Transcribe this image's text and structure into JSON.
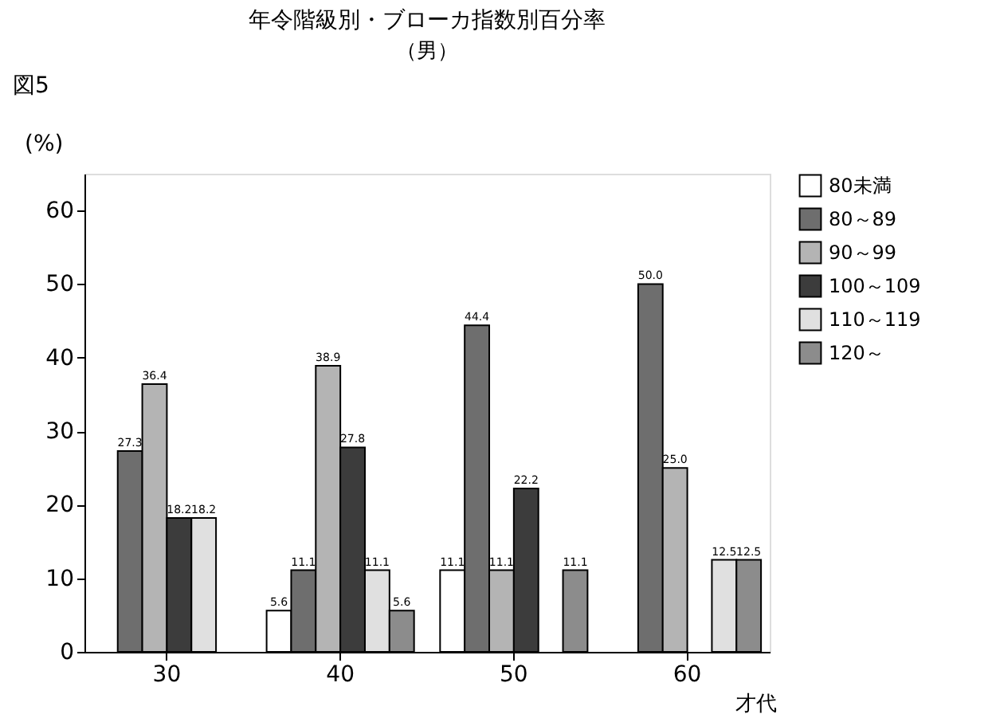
{
  "chart_data": {
    "type": "bar",
    "title": "年令階級別・ブローカ指数別百分率",
    "subtitle": "（男）",
    "annotations": [
      "図5"
    ],
    "ylabel": "(%)",
    "xlabel": "才代",
    "categories": [
      "30",
      "40",
      "50",
      "60"
    ],
    "series": [
      {
        "name": "80未満",
        "color": "#ffffff",
        "values": [
          null,
          5.6,
          11.1,
          null
        ],
        "value_labels": [
          null,
          "5.6",
          "11.1",
          null
        ]
      },
      {
        "name": "80～89",
        "color": "#6e6e6e",
        "values": [
          27.3,
          11.1,
          44.4,
          50.0
        ],
        "value_labels": [
          "27.3",
          "11.1",
          "44.4",
          "50.0"
        ]
      },
      {
        "name": "90～99",
        "color": "#b4b4b4",
        "values": [
          36.4,
          38.9,
          11.1,
          25.0
        ],
        "value_labels": [
          "36.4",
          "38.9",
          "11.1",
          "25.0"
        ]
      },
      {
        "name": "100～109",
        "color": "#3c3c3c",
        "values": [
          18.2,
          27.8,
          22.2,
          null
        ],
        "value_labels": [
          "18.2",
          "27.8",
          "22.2",
          null
        ]
      },
      {
        "name": "110～119",
        "color": "#e0e0e0",
        "values": [
          18.2,
          11.1,
          null,
          12.5
        ],
        "value_labels": [
          "18.2",
          "11.1",
          null,
          "12.5"
        ]
      },
      {
        "name": "120～",
        "color": "#8c8c8c",
        "values": [
          null,
          5.6,
          11.1,
          12.5
        ],
        "value_labels": [
          null,
          "5.6",
          "11.1",
          "12.5"
        ]
      }
    ],
    "ylim": [
      0,
      65
    ],
    "yticks": [
      0,
      10,
      20,
      30,
      40,
      50,
      60
    ],
    "grid": false,
    "legend": "right"
  }
}
